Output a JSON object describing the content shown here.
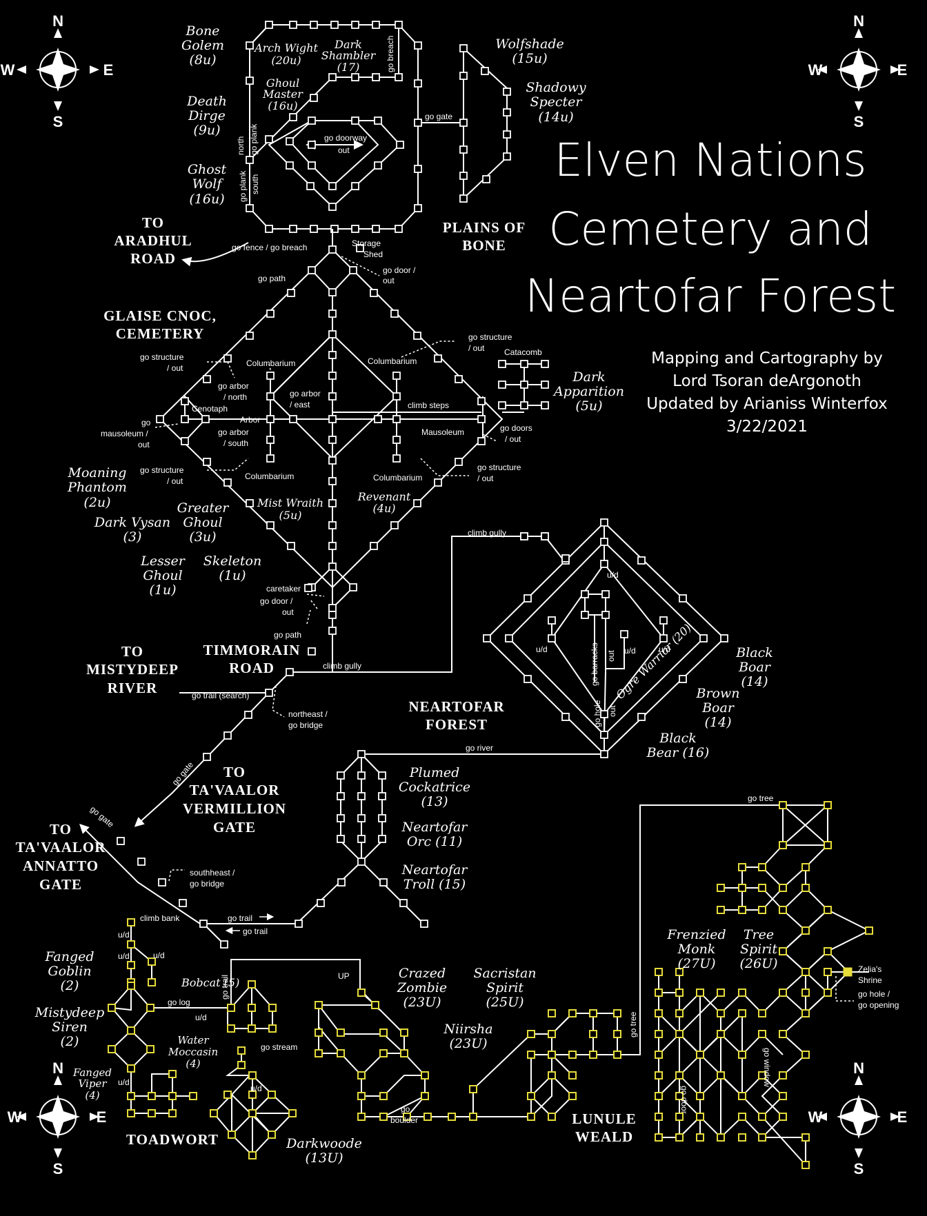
{
  "title": {
    "line1": "Elven Nations",
    "line2": "Cemetery and",
    "line3": "Neartofar Forest"
  },
  "credits": {
    "line1": "Mapping and Cartography by",
    "line2": "Lord Tsoran deArgonoth",
    "line3": "Updated by Arianiss Winterfox",
    "line4": "3/22/2021"
  },
  "compass": {
    "n": "N",
    "s": "S",
    "e": "E",
    "w": "W"
  },
  "areas": {
    "plains": [
      "PLAINS OF",
      "BONE"
    ],
    "aradhul": [
      "TO",
      "ARADHUL",
      "ROAD"
    ],
    "glaise": [
      "GLAISE CNOC,",
      "CEMETERY"
    ],
    "timmorain": [
      "TIMMORAIN",
      "ROAD"
    ],
    "mistydeep": [
      "TO",
      "MISTYDEEP",
      "RIVER"
    ],
    "neartofar": [
      "NEARTOFAR",
      "FOREST"
    ],
    "vermillion": [
      "TO",
      "TA'VAALOR",
      "VERMILLION",
      "GATE"
    ],
    "annatto": [
      "TO",
      "TA'VAALOR",
      "ANNATTO",
      "GATE"
    ],
    "toadwort": [
      "TOADWORT"
    ],
    "lunule": [
      "LUNULE",
      "WEALD"
    ]
  },
  "mobs": {
    "bone_golem": [
      "Bone",
      "Golem",
      "(8u)"
    ],
    "death_dirge": [
      "Death",
      "Dirge",
      "(9u)"
    ],
    "ghost_wolf": [
      "Ghost",
      "Wolf",
      "(16u)"
    ],
    "arch_wight": [
      "Arch Wight",
      "(20u)"
    ],
    "dark_shambler": [
      "Dark",
      "Shambler",
      "(17)"
    ],
    "ghoul_master": [
      "Ghoul",
      "Master",
      "(16u)"
    ],
    "wolfshade": [
      "Wolfshade",
      "(15u)"
    ],
    "shadowy_specter": [
      "Shadowy",
      "Specter",
      "(14u)"
    ],
    "dark_apparition": [
      "Dark",
      "Apparition",
      "(5u)"
    ],
    "moaning_phantom": [
      "Moaning",
      "Phantom",
      "(2u)"
    ],
    "dark_vysan": [
      "Dark Vysan",
      "(3)"
    ],
    "greater_ghoul": [
      "Greater",
      "Ghoul",
      "(3u)"
    ],
    "lesser_ghoul": [
      "Lesser",
      "Ghoul",
      "(1u)"
    ],
    "skeleton": [
      "Skeleton",
      "(1u)"
    ],
    "mist_wraith": [
      "Mist Wraith",
      "(5u)"
    ],
    "revenant": [
      "Revenant",
      "(4u)"
    ],
    "black_boar": [
      "Black",
      "Boar",
      "(14)"
    ],
    "brown_boar": [
      "Brown",
      "Boar",
      "(14)"
    ],
    "black_bear": [
      "Black",
      "Bear (16)"
    ],
    "ogre_warrior": "Ogre Warrior (20)",
    "plumed": [
      "Plumed",
      "Cockatrice",
      "(13)"
    ],
    "orc": [
      "Neartofar",
      "Orc (11)"
    ],
    "troll": [
      "Neartofar",
      "Troll (15)"
    ],
    "fanged_goblin": [
      "Fanged",
      "Goblin",
      "(2)"
    ],
    "siren": [
      "Mistydeep",
      "Siren",
      "(2)"
    ],
    "bobcat": "Bobcat (5)",
    "moccasin": [
      "Water",
      "Moccasin",
      "(4)"
    ],
    "viper": [
      "Fanged",
      "Viper",
      "(4)"
    ],
    "zombie": [
      "Crazed",
      "Zombie",
      "(23U)"
    ],
    "sacristan": [
      "Sacristan",
      "Spirit",
      "(25U)"
    ],
    "niirsha": [
      "Niirsha",
      "(23U)"
    ],
    "frenzied": [
      "Frenzied",
      "Monk",
      "(27U)"
    ],
    "tree_spirit": [
      "Tree",
      "Spirit",
      "(26U)"
    ],
    "darkwoode": [
      "Darkwoode",
      "(13U)"
    ]
  },
  "labels": {
    "go_breach": "go breach",
    "go_gate": "go gate",
    "go_plank_n": "go plank",
    "north": "north",
    "go_plank_s": "go plank",
    "south": "south",
    "go_doorway": "go doorway",
    "out": "out",
    "go_fence": "go fence / go breach",
    "storage": [
      "Storage",
      "Shed"
    ],
    "go_door_out": [
      "go door /",
      "out"
    ],
    "go_path": "go path",
    "columbarium": "Columbarium",
    "catacomb": "Catacomb",
    "go_structure_out": [
      "go structure",
      "/ out"
    ],
    "go_arbor_north": [
      "go arbor",
      "/ north"
    ],
    "go_arbor_east": [
      "go arbor",
      "/ east"
    ],
    "go_arbor_south": [
      "go arbor",
      "/ south"
    ],
    "cenotaph": "Cenotaph",
    "arbor": "Arbor",
    "climb_steps": "climb steps",
    "mausoleum": "Mausoleum",
    "go_mausoleum": [
      "go",
      "mausoleum /",
      "out"
    ],
    "go_doors_out": [
      "go doors",
      "/ out"
    ],
    "caretaker": "caretaker",
    "climb_gully": "climb gully",
    "go_trail_search": "go trail (search)",
    "northeast_bridge": [
      "northeast /",
      "go bridge"
    ],
    "go_river": "go river",
    "ud": "u/d",
    "go_barracks": "go barracks",
    "go_hole": "go hole",
    "southheast_bridge": [
      "southheast /",
      "go bridge"
    ],
    "climb_bank": "climb bank",
    "go_trail": "go trail",
    "go_log": "go log",
    "go_stream": "go stream",
    "up": "UP",
    "go_boulder": [
      "go",
      "boulder"
    ],
    "go_tree": "go tree",
    "zelia": [
      "Zelia's",
      "Shrine"
    ],
    "go_hole_opening": [
      "go hole /",
      "go opening"
    ],
    "go_window": "go window",
    "go_door": "go door"
  },
  "colors": {
    "background": "#000000",
    "lines": "#ffffff",
    "yellow_rooms": "#e6dc3a"
  }
}
